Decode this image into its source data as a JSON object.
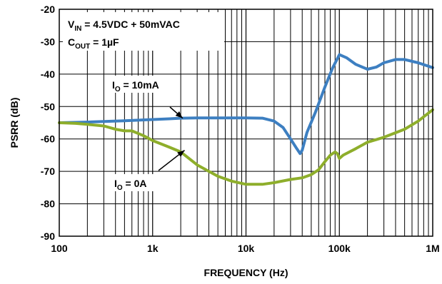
{
  "chart_data": {
    "type": "line",
    "title": "",
    "xlabel": "FREQUENCY (Hz)",
    "ylabel": "PSRR (dB)",
    "x_scale": "log",
    "xlim": [
      100,
      1000000
    ],
    "ylim": [
      -90,
      -20
    ],
    "x_ticks": [
      {
        "value": 100,
        "label": "100"
      },
      {
        "value": 1000,
        "label": "1k"
      },
      {
        "value": 10000,
        "label": "10k"
      },
      {
        "value": 100000,
        "label": "100k"
      },
      {
        "value": 1000000,
        "label": "1M"
      }
    ],
    "y_ticks": [
      {
        "value": -20,
        "label": "-20"
      },
      {
        "value": -30,
        "label": "-30"
      },
      {
        "value": -40,
        "label": "-40"
      },
      {
        "value": -50,
        "label": "-50"
      },
      {
        "value": -60,
        "label": "-60"
      },
      {
        "value": -70,
        "label": "-70"
      },
      {
        "value": -80,
        "label": "-80"
      },
      {
        "value": -90,
        "label": "-90"
      }
    ],
    "grid": true,
    "conditions": {
      "vin": {
        "main": "V",
        "sub": "IN",
        "rest": " = 4.5VDC + 50mVAC"
      },
      "cout": {
        "main": "C",
        "sub": "OUT",
        "rest": " = 1µF"
      }
    },
    "series": [
      {
        "color": "#3d7fc1",
        "label": {
          "main": "I",
          "sub": "O",
          "rest": " = 10mA",
          "anchor_x": 2100,
          "anchor_y": -53.6
        },
        "points": [
          [
            100,
            -55
          ],
          [
            150,
            -54.9
          ],
          [
            200,
            -54.8
          ],
          [
            300,
            -54.6
          ],
          [
            500,
            -54.4
          ],
          [
            700,
            -54.2
          ],
          [
            1000,
            -54.0
          ],
          [
            1500,
            -53.8
          ],
          [
            2000,
            -53.6
          ],
          [
            3000,
            -53.5
          ],
          [
            5000,
            -53.5
          ],
          [
            10000,
            -53.5
          ],
          [
            15000,
            -53.6
          ],
          [
            20000,
            -54.5
          ],
          [
            25000,
            -56.5
          ],
          [
            30000,
            -60
          ],
          [
            35000,
            -63
          ],
          [
            38000,
            -64.5
          ],
          [
            40000,
            -63.5
          ],
          [
            45000,
            -58
          ],
          [
            55000,
            -52
          ],
          [
            70000,
            -44
          ],
          [
            85000,
            -38
          ],
          [
            100000,
            -34
          ],
          [
            120000,
            -35
          ],
          [
            150000,
            -37
          ],
          [
            200000,
            -38.5
          ],
          [
            250000,
            -37.8
          ],
          [
            300000,
            -36.5
          ],
          [
            400000,
            -35.5
          ],
          [
            500000,
            -35.5
          ],
          [
            700000,
            -36.5
          ],
          [
            1000000,
            -38
          ]
        ]
      },
      {
        "color": "#8eae2b",
        "label": {
          "main": "I",
          "sub": "O",
          "rest": " = 0A",
          "anchor_x": 2200,
          "anchor_y": -63.5
        },
        "points": [
          [
            100,
            -55
          ],
          [
            150,
            -55.2
          ],
          [
            200,
            -55.5
          ],
          [
            300,
            -56
          ],
          [
            400,
            -57
          ],
          [
            500,
            -57.5
          ],
          [
            600,
            -57.5
          ],
          [
            800,
            -59
          ],
          [
            1000,
            -60.5
          ],
          [
            1500,
            -62.5
          ],
          [
            2000,
            -64
          ],
          [
            3000,
            -68
          ],
          [
            4000,
            -70
          ],
          [
            5000,
            -71.5
          ],
          [
            7000,
            -73
          ],
          [
            10000,
            -74
          ],
          [
            15000,
            -74
          ],
          [
            20000,
            -73.5
          ],
          [
            30000,
            -72.5
          ],
          [
            40000,
            -72
          ],
          [
            50000,
            -71
          ],
          [
            60000,
            -69.5
          ],
          [
            70000,
            -67
          ],
          [
            80000,
            -65
          ],
          [
            90000,
            -64
          ],
          [
            95000,
            -64.5
          ],
          [
            100000,
            -66
          ],
          [
            110000,
            -65
          ],
          [
            150000,
            -63
          ],
          [
            200000,
            -61
          ],
          [
            300000,
            -59.5
          ],
          [
            500000,
            -57
          ],
          [
            700000,
            -54.5
          ],
          [
            1000000,
            -51
          ]
        ]
      }
    ]
  }
}
